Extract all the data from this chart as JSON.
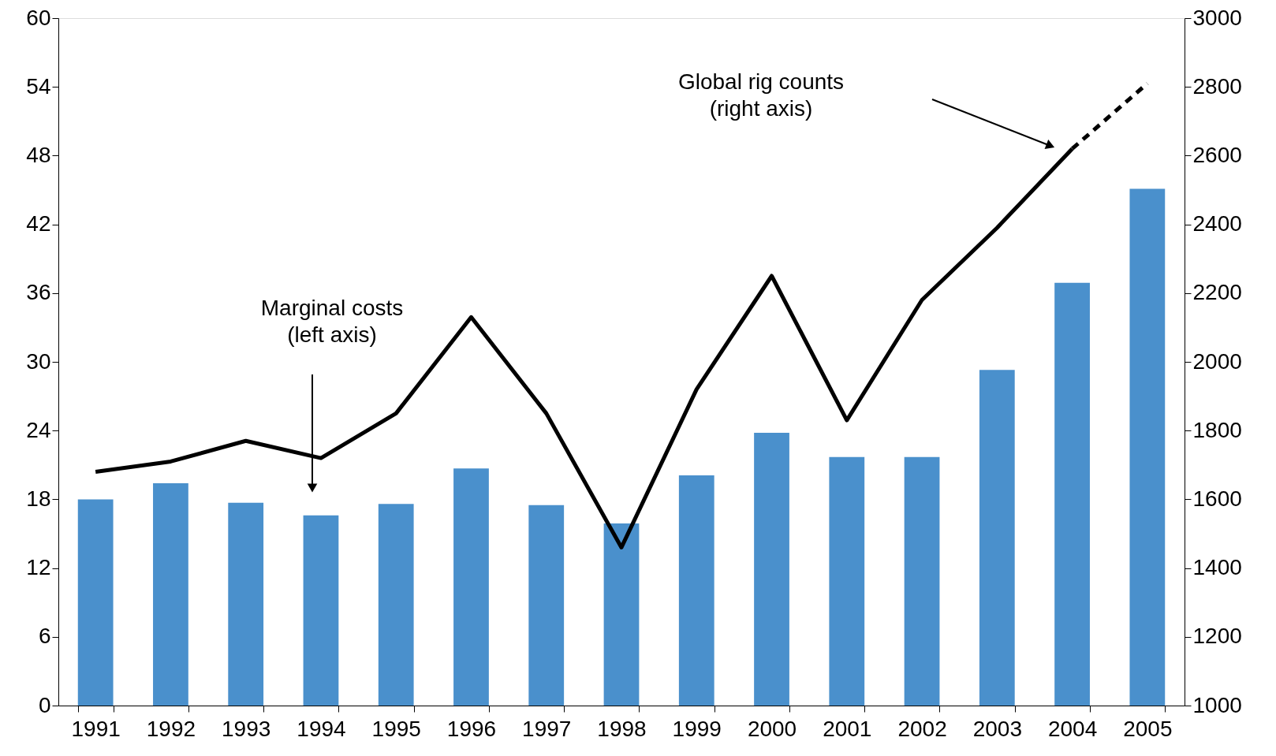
{
  "chart_data": {
    "type": "bar",
    "categories": [
      "1991",
      "1992",
      "1993",
      "1994",
      "1995",
      "1996",
      "1997",
      "1998",
      "1999",
      "2000",
      "2001",
      "2002",
      "2003",
      "2004",
      "2005"
    ],
    "series": [
      {
        "color": "#4a90cc",
        "values": [
          18.0,
          19.4,
          17.7,
          16.6,
          17.6,
          20.7,
          17.5,
          15.9,
          20.1,
          23.8,
          21.7,
          21.7,
          29.3,
          36.9,
          45.1
        ]
      },
      {
        "type": "line",
        "axis": "y2",
        "color": "#000000",
        "line_style": "solid",
        "values": [
          1680,
          1710,
          1770,
          1720,
          1850,
          2130,
          1850,
          1460,
          1920,
          2250,
          1830,
          2180,
          2390,
          2620,
          null
        ]
      },
      {
        "type": "line",
        "axis": "y2",
        "color": "#000000",
        "line_style": "dashed",
        "values": [
          null,
          null,
          null,
          null,
          null,
          null,
          null,
          null,
          null,
          null,
          null,
          null,
          null,
          2620,
          2810
        ]
      }
    ],
    "ylim": [
      0,
      60
    ],
    "yticks": [
      0,
      6,
      12,
      18,
      24,
      30,
      36,
      42,
      48,
      54,
      60
    ],
    "y2lim": [
      1000,
      3000
    ],
    "y2ticks": [
      1000,
      1200,
      1400,
      1600,
      1800,
      2000,
      2200,
      2400,
      2600,
      2800,
      3000
    ],
    "annotations": [
      "Marginal costs\n(left axis)",
      "Global rig counts\n(right axis)"
    ],
    "grid": false,
    "legend": false
  }
}
